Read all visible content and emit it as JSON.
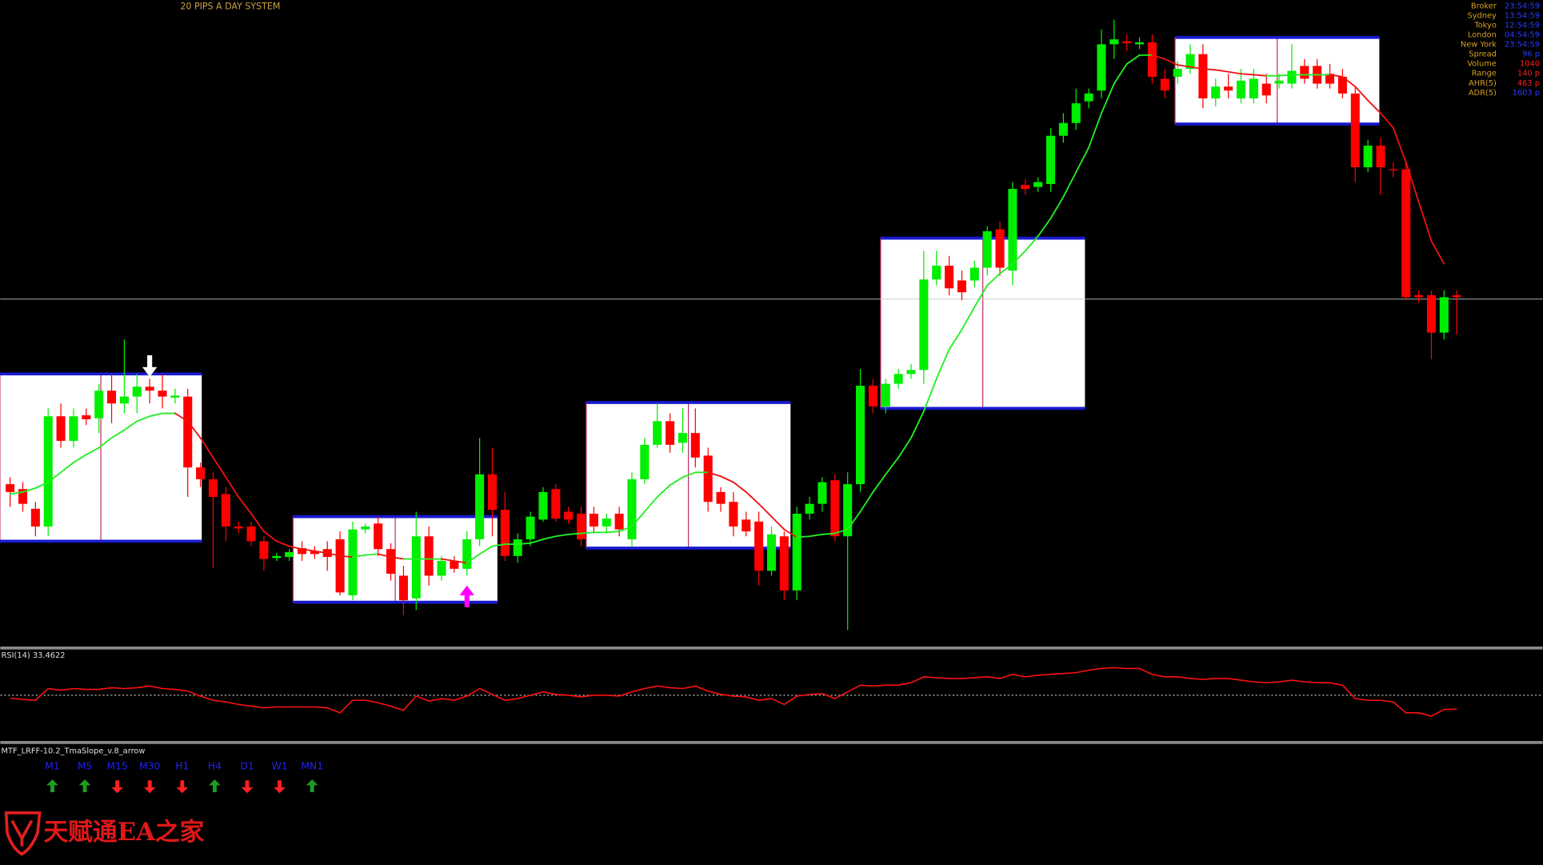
{
  "header": {
    "title": "20 PIPS A DAY SYSTEM"
  },
  "info_panel": [
    {
      "label": "Broker",
      "value": "23:54:59",
      "color": "#2a3cff"
    },
    {
      "label": "Sydney",
      "value": "13:54:59",
      "color": "#2a3cff"
    },
    {
      "label": "Tokyo",
      "value": "12:54:59",
      "color": "#2a3cff"
    },
    {
      "label": "London",
      "value": "04:54:59",
      "color": "#2a3cff"
    },
    {
      "label": "New York",
      "value": "23:54:59",
      "color": "#2a3cff"
    },
    {
      "label": "Spread",
      "value": "96 p",
      "color": "#2a3cff"
    },
    {
      "label": "Volume",
      "value": "1040",
      "color": "#ff2020"
    },
    {
      "label": "Range",
      "value": "140 p",
      "color": "#ff2020"
    },
    {
      "label": "AHR(5)",
      "value": "463 p",
      "color": "#ff2020"
    },
    {
      "label": "ADR(5)",
      "value": "1603 p",
      "color": "#2a3cff"
    }
  ],
  "price_chart": {
    "type": "candlestick",
    "ylim": [
      0,
      660
    ],
    "up_color": "#00ee00",
    "down_color": "#ff0000",
    "candles": [
      [
        168,
        175,
        145,
        160
      ],
      [
        163,
        170,
        140,
        148
      ],
      [
        143,
        150,
        115,
        125
      ],
      [
        125,
        245,
        115,
        237
      ],
      [
        237,
        250,
        205,
        212
      ],
      [
        212,
        245,
        205,
        237
      ],
      [
        238,
        245,
        228,
        234
      ],
      [
        235,
        270,
        220,
        263
      ],
      [
        263,
        280,
        230,
        250
      ],
      [
        250,
        315,
        240,
        257
      ],
      [
        257,
        280,
        240,
        267
      ],
      [
        267,
        275,
        250,
        263
      ],
      [
        263,
        280,
        245,
        257
      ],
      [
        256,
        265,
        250,
        258
      ],
      [
        257,
        265,
        155,
        185
      ],
      [
        185,
        190,
        165,
        173
      ],
      [
        173,
        180,
        83,
        155
      ],
      [
        158,
        165,
        110,
        125
      ],
      [
        125,
        130,
        118,
        123
      ],
      [
        125,
        130,
        105,
        110
      ],
      [
        110,
        115,
        80,
        92
      ],
      [
        93,
        98,
        90,
        95
      ],
      [
        94,
        102,
        90,
        99
      ],
      [
        103,
        110,
        90,
        97
      ],
      [
        100,
        105,
        92,
        97
      ],
      [
        102,
        110,
        80,
        94
      ],
      [
        112,
        120,
        55,
        58
      ],
      [
        55,
        130,
        50,
        122
      ],
      [
        122,
        128,
        118,
        125
      ],
      [
        128,
        135,
        95,
        102
      ],
      [
        102,
        108,
        70,
        77
      ],
      [
        75,
        85,
        35,
        50
      ],
      [
        52,
        140,
        40,
        115
      ],
      [
        115,
        125,
        65,
        75
      ],
      [
        75,
        95,
        70,
        90
      ],
      [
        90,
        95,
        78,
        82
      ],
      [
        82,
        120,
        75,
        112
      ],
      [
        112,
        215,
        105,
        178
      ],
      [
        178,
        205,
        115,
        142
      ],
      [
        142,
        160,
        90,
        95
      ],
      [
        95,
        118,
        88,
        112
      ],
      [
        112,
        140,
        105,
        135
      ],
      [
        132,
        165,
        130,
        160
      ],
      [
        163,
        168,
        130,
        133
      ],
      [
        140,
        145,
        128,
        132
      ],
      [
        138,
        145,
        105,
        112
      ],
      [
        138,
        145,
        118,
        125
      ],
      [
        125,
        138,
        118,
        133
      ],
      [
        138,
        145,
        115,
        122
      ],
      [
        112,
        180,
        105,
        173
      ],
      [
        173,
        215,
        168,
        208
      ],
      [
        208,
        250,
        205,
        232
      ],
      [
        232,
        240,
        200,
        208
      ],
      [
        210,
        245,
        200,
        220
      ],
      [
        220,
        245,
        185,
        195
      ],
      [
        197,
        205,
        140,
        150
      ],
      [
        160,
        165,
        140,
        148
      ],
      [
        150,
        160,
        115,
        125
      ],
      [
        132,
        140,
        115,
        120
      ],
      [
        130,
        140,
        65,
        80
      ],
      [
        80,
        125,
        75,
        117
      ],
      [
        115,
        120,
        50,
        60
      ],
      [
        60,
        145,
        50,
        138
      ],
      [
        138,
        155,
        132,
        148
      ],
      [
        148,
        175,
        140,
        170
      ],
      [
        172,
        178,
        110,
        115
      ],
      [
        115,
        180,
        20,
        168
      ],
      [
        168,
        285,
        160,
        268
      ],
      [
        268,
        275,
        240,
        247
      ],
      [
        247,
        275,
        240,
        270
      ],
      [
        270,
        285,
        265,
        280
      ],
      [
        280,
        290,
        275,
        284
      ],
      [
        284,
        405,
        270,
        376
      ],
      [
        376,
        405,
        370,
        390
      ],
      [
        390,
        400,
        360,
        367
      ],
      [
        375,
        385,
        355,
        363
      ],
      [
        375,
        395,
        368,
        388
      ],
      [
        388,
        430,
        380,
        425
      ],
      [
        427,
        435,
        380,
        388
      ],
      [
        385,
        475,
        370,
        468
      ],
      [
        472,
        478,
        462,
        468
      ],
      [
        470,
        480,
        465,
        475
      ],
      [
        473,
        530,
        465,
        522
      ],
      [
        522,
        545,
        515,
        535
      ],
      [
        535,
        570,
        528,
        555
      ],
      [
        557,
        570,
        550,
        565
      ],
      [
        568,
        630,
        560,
        615
      ],
      [
        615,
        640,
        600,
        620
      ],
      [
        618,
        625,
        608,
        616
      ],
      [
        615,
        622,
        610,
        617
      ],
      [
        617,
        625,
        575,
        582
      ],
      [
        580,
        590,
        560,
        568
      ],
      [
        582,
        598,
        575,
        590
      ],
      [
        590,
        615,
        585,
        605
      ],
      [
        605,
        615,
        550,
        560
      ],
      [
        560,
        580,
        552,
        572
      ],
      [
        572,
        585,
        560,
        568
      ],
      [
        560,
        590,
        555,
        578
      ],
      [
        560,
        590,
        555,
        580
      ],
      [
        575,
        585,
        555,
        563
      ],
      [
        575,
        585,
        570,
        578
      ],
      [
        575,
        615,
        570,
        588
      ],
      [
        593,
        600,
        575,
        580
      ],
      [
        593,
        600,
        570,
        575
      ],
      [
        585,
        595,
        570,
        575
      ],
      [
        582,
        590,
        560,
        565
      ],
      [
        565,
        572,
        475,
        490
      ],
      [
        490,
        518,
        485,
        512
      ],
      [
        512,
        520,
        462,
        490
      ],
      [
        488,
        495,
        480,
        487
      ],
      [
        488,
        495,
        355,
        358
      ],
      [
        360,
        365,
        352,
        358
      ],
      [
        360,
        365,
        295,
        322
      ],
      [
        322,
        365,
        315,
        358
      ],
      [
        360,
        365,
        320,
        358
      ]
    ],
    "ma": [
      158,
      160,
      164,
      170,
      180,
      190,
      198,
      205,
      215,
      223,
      232,
      237,
      240,
      240,
      232,
      215,
      195,
      175,
      155,
      138,
      120,
      110,
      105,
      102,
      100,
      98,
      95,
      94,
      96,
      97,
      94,
      92,
      92,
      92,
      92,
      90,
      88,
      97,
      105,
      107,
      107,
      108,
      112,
      115,
      117,
      118,
      119,
      119,
      120,
      125,
      140,
      155,
      167,
      175,
      180,
      180,
      176,
      170,
      160,
      148,
      135,
      122,
      114,
      115,
      117,
      118,
      122,
      140,
      160,
      178,
      195,
      215,
      242,
      275,
      305,
      325,
      348,
      370,
      382,
      392,
      405,
      420,
      438,
      460,
      485,
      510,
      545,
      575,
      595,
      604,
      604,
      600,
      594,
      592,
      590,
      589,
      587,
      585,
      584,
      583,
      583,
      584,
      584,
      584,
      584,
      582,
      572,
      558,
      545,
      530,
      495,
      455,
      415,
      392,
      null
    ],
    "ma_up_color": "#22ee22",
    "ma_down_color": "#ee1111",
    "price_line": 356,
    "sessions": [
      {
        "from": -0.8,
        "to": 15.1,
        "high": 280,
        "low": 110
      },
      {
        "from": 22.3,
        "to": 38.4,
        "high": 135,
        "low": 48
      },
      {
        "from": 45.4,
        "to": 61.5,
        "high": 251,
        "low": 103
      },
      {
        "from": 68.6,
        "to": 84.7,
        "high": 418,
        "low": 245
      },
      {
        "from": 91.8,
        "to": 107.9,
        "high": 622,
        "low": 534
      }
    ],
    "signals": [
      {
        "index": 11,
        "direction": "down",
        "color": "#ffffff"
      },
      {
        "index": 36,
        "direction": "up",
        "color": "#ff00ff"
      }
    ]
  },
  "rsi": {
    "label": "RSI(14) 33.4622",
    "ylim": [
      0,
      100
    ],
    "level": 50,
    "color": "#ff1010",
    "values": [
      46.5,
      45,
      44,
      58,
      56,
      58,
      57,
      57,
      59,
      58,
      59,
      61,
      58,
      57,
      55,
      49,
      44,
      42,
      39,
      37,
      35,
      36,
      36,
      36,
      36,
      35,
      29,
      44,
      44,
      41,
      37,
      32,
      49,
      43,
      46,
      44,
      49,
      58,
      51,
      44,
      46,
      50,
      54,
      51,
      50,
      48,
      50,
      50,
      49,
      54,
      58,
      61,
      59,
      58,
      61,
      55,
      51,
      49,
      48,
      44,
      46,
      39,
      49,
      51,
      52,
      46,
      54,
      62,
      61,
      62,
      62,
      65,
      72,
      71,
      70,
      70,
      71,
      72,
      70,
      75,
      72,
      74,
      75,
      76,
      77,
      80,
      82,
      83,
      82,
      82,
      75,
      72,
      72,
      70,
      69,
      70,
      70,
      68,
      66,
      65,
      66,
      68,
      66,
      65,
      65,
      62,
      46,
      44,
      44,
      42,
      29,
      29,
      25,
      33,
      33.4622
    ]
  },
  "mtf": {
    "label": "MTF_LRFF-10.2_TmaSlope_v.8_arrow",
    "timeframes": [
      {
        "name": "M1",
        "direction": "up"
      },
      {
        "name": "M5",
        "direction": "up"
      },
      {
        "name": "M15",
        "direction": "down"
      },
      {
        "name": "M30",
        "direction": "down"
      },
      {
        "name": "H1",
        "direction": "down"
      },
      {
        "name": "H4",
        "direction": "up"
      },
      {
        "name": "D1",
        "direction": "down"
      },
      {
        "name": "W1",
        "direction": "down"
      },
      {
        "name": "MN1",
        "direction": "up"
      }
    ]
  },
  "watermark": "天赋通EA之家"
}
